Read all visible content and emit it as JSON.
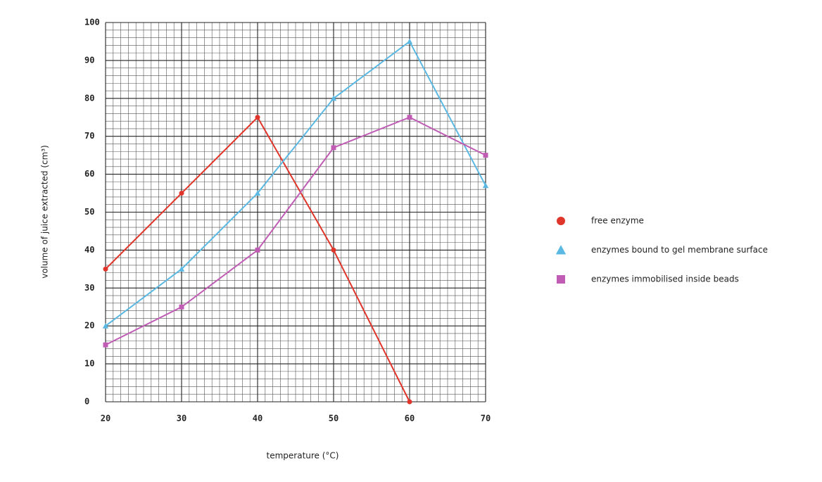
{
  "chart_data": {
    "type": "line",
    "x_label": "temperature (°C)",
    "y_label": "volume of juice extracted (cm³)",
    "x": [
      20,
      30,
      40,
      50,
      60,
      70
    ],
    "series": [
      {
        "name": "free enzyme",
        "color": "#e0352b",
        "marker": "circle",
        "values": [
          35,
          55,
          75,
          40,
          0,
          null
        ]
      },
      {
        "name": "enzymes bound to gel membrane surface",
        "color": "#5ab8e2",
        "marker": "triangle",
        "values": [
          20,
          35,
          55,
          80,
          95,
          57
        ]
      },
      {
        "name": "enzymes immobilised inside beads",
        "color": "#c05cb4",
        "marker": "square",
        "values": [
          15,
          25,
          40,
          67,
          75,
          65
        ]
      }
    ],
    "xlim": [
      20,
      70
    ],
    "xticks": [
      20,
      30,
      40,
      50,
      60,
      70
    ],
    "ylim": [
      0,
      100
    ],
    "yticks": [
      0,
      10,
      20,
      30,
      40,
      50,
      60,
      70,
      80,
      90,
      100
    ],
    "grid": true,
    "legend": "right"
  }
}
